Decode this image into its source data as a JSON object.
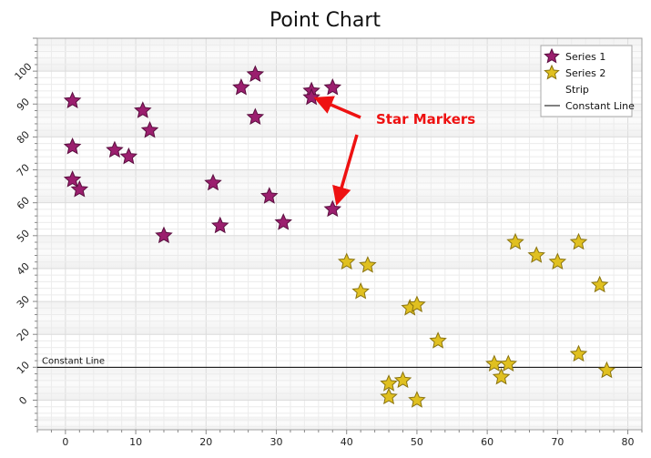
{
  "chart_data": {
    "type": "scatter",
    "title": "Point Chart",
    "xlim": [
      -4,
      82
    ],
    "ylim": [
      -9,
      110
    ],
    "x_ticks": [
      0,
      10,
      20,
      30,
      40,
      50,
      60,
      70,
      80
    ],
    "y_ticks": [
      0,
      10,
      20,
      30,
      40,
      50,
      60,
      70,
      80,
      90,
      100
    ],
    "grid": true,
    "marker": "star",
    "legend_position": "top-right",
    "series": [
      {
        "name": "Series 1",
        "color": "#9b1e6e",
        "points": [
          [
            1,
            91
          ],
          [
            1,
            77
          ],
          [
            1,
            67
          ],
          [
            2,
            64
          ],
          [
            7,
            76
          ],
          [
            9,
            74
          ],
          [
            11,
            88
          ],
          [
            12,
            82
          ],
          [
            14,
            50
          ],
          [
            21,
            66
          ],
          [
            22,
            53
          ],
          [
            25,
            95
          ],
          [
            27,
            99
          ],
          [
            27,
            86
          ],
          [
            29,
            62
          ],
          [
            31,
            54
          ],
          [
            35,
            94
          ],
          [
            35,
            92
          ],
          [
            38,
            95
          ],
          [
            38,
            58
          ]
        ]
      },
      {
        "name": "Series 2",
        "color": "#e0c020",
        "points": [
          [
            40,
            42
          ],
          [
            42,
            33
          ],
          [
            43,
            41
          ],
          [
            46,
            5
          ],
          [
            46,
            1
          ],
          [
            48,
            6
          ],
          [
            49,
            28
          ],
          [
            50,
            29
          ],
          [
            50,
            0
          ],
          [
            53,
            18
          ],
          [
            61,
            11
          ],
          [
            62,
            7
          ],
          [
            63,
            11
          ],
          [
            64,
            48
          ],
          [
            67,
            44
          ],
          [
            70,
            42
          ],
          [
            73,
            48
          ],
          [
            73,
            14
          ],
          [
            76,
            35
          ],
          [
            77,
            9
          ]
        ]
      }
    ],
    "strips": [
      {
        "from": 100,
        "to": 110
      },
      {
        "from": 80,
        "to": 90
      },
      {
        "from": 60,
        "to": 70
      },
      {
        "from": 40,
        "to": 50
      },
      {
        "from": 20,
        "to": 30
      },
      {
        "from": 0,
        "to": 10
      },
      {
        "from": -9,
        "to": -5
      }
    ],
    "legend": [
      {
        "label": "Series 1",
        "kind": "star",
        "color": "#9b1e6e"
      },
      {
        "label": "Series 2",
        "kind": "star",
        "color": "#e0c020"
      },
      {
        "label": "Strip",
        "kind": "none"
      },
      {
        "label": "Constant Line",
        "kind": "line",
        "color": "#000000"
      }
    ],
    "constant_line": {
      "value": 10,
      "label": "Constant Line"
    },
    "annotation": {
      "text": "Star Markers",
      "color": "#ee1111",
      "targets": [
        [
          35,
          92
        ],
        [
          38,
          58
        ]
      ]
    }
  }
}
